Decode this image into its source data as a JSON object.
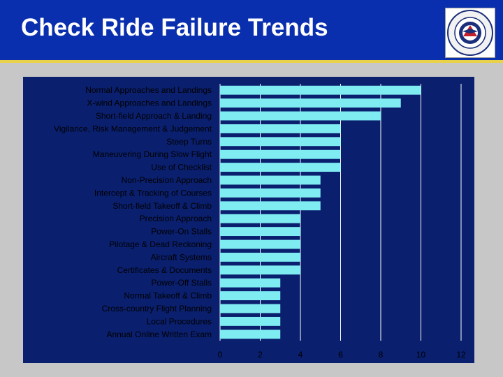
{
  "page": {
    "title": "Check Ride Failure Trends",
    "logo_text": [
      "UNITED STATES AIR FORCE AUXILIARY",
      "CIVIL AIR PATROL"
    ]
  },
  "colors": {
    "header": "#0a2fae",
    "accent": "#e9d24a",
    "panel": "#0a1f6e",
    "bar": "#7fecf2",
    "grid": "#ffffff"
  },
  "chart_data": {
    "type": "bar",
    "orientation": "horizontal",
    "title": "",
    "xlabel": "",
    "ylabel": "",
    "xlim": [
      0,
      12
    ],
    "xticks": [
      0,
      2,
      4,
      6,
      8,
      10,
      12
    ],
    "grid": true,
    "categories": [
      "Normal Approaches and Landings",
      "X-wind Approaches and Landings",
      "Short-field Approach & Landing",
      "Vigilance, Risk Management & Judgement",
      "Steep Turns",
      "Maneuvering During Slow Flight",
      "Use of Checklist",
      "Non-Precision Approach",
      "Intercept & Tracking of Courses",
      "Short-field Takeoff & Climb",
      "Precision Approach",
      "Power-On Stalls",
      "Pilotage & Dead Reckoning",
      "Aircraft Systems",
      "Certificates & Documents",
      "Power-Off Stalls",
      "Normal Takeoff & Climb",
      "Cross-country Flight Planning",
      "Local Procedures",
      "Annual Online Written Exam"
    ],
    "values": [
      10,
      9,
      8,
      6,
      6,
      6,
      6,
      5,
      5,
      5,
      4,
      4,
      4,
      4,
      4,
      3,
      3,
      3,
      3,
      3
    ]
  }
}
